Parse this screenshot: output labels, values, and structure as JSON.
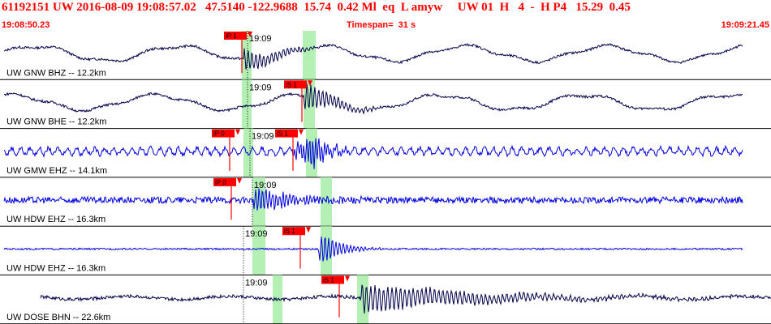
{
  "header": {
    "title": "61192151 UW 2016-08-09 19:08:57.02   47.5140 -122.9688  15.74  0.42 Ml  eq  L amyw     UW 01  H   4  -  H P4   15.29  0.45",
    "start_time": "19:08:50.23",
    "timespan": "Timespan=  31 s",
    "end_time": "19:09:21.45"
  },
  "colors": {
    "header_text": "#ff0000",
    "trace_dark": "#00004a",
    "trace_blue": "#0000e0",
    "window_green": "#b4f0b4",
    "pick": "#ff0000",
    "divider": "#000000"
  },
  "traces": [
    {
      "label": "UW GNW BHZ -- 12.2km",
      "time_mark": "19:09",
      "color": "dark",
      "picks": [
        {
          "label": "iP 1"
        }
      ],
      "windows": 2
    },
    {
      "label": "UW GNW BHE -- 12.2km",
      "time_mark": "19:09",
      "color": "dark",
      "picks": [
        {
          "label": "iS 1"
        }
      ],
      "windows": 2
    },
    {
      "label": "UW GMW EHZ -- 14.1km",
      "time_mark": "19:09",
      "color": "blue",
      "picks": [
        {
          "label": "iP 0"
        },
        {
          "label": "iS 1"
        }
      ],
      "windows": 2
    },
    {
      "label": "UW HDW EHZ -- 16.3km",
      "time_mark": "19:09",
      "color": "blue",
      "picks": [
        {
          "label": "iP 0"
        }
      ],
      "windows": 2
    },
    {
      "label": "UW HDW EHZ -- 16.3km",
      "time_mark": "19:09",
      "color": "blue",
      "picks": [
        {
          "label": "iS 1"
        }
      ],
      "windows": 2
    },
    {
      "label": "UW DOSE BHN -- 22.6km",
      "time_mark": "19:09",
      "color": "dark",
      "picks": [
        {
          "label": "iS 1"
        }
      ],
      "windows": 2
    }
  ]
}
